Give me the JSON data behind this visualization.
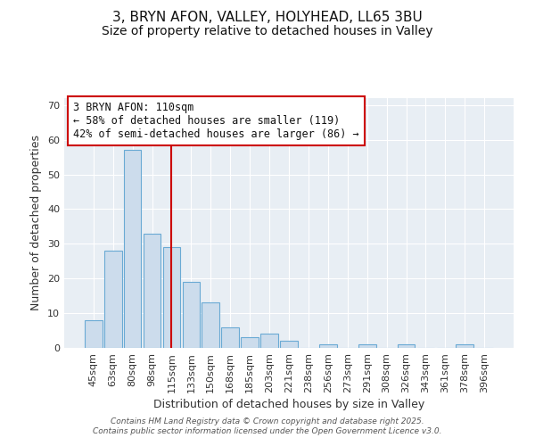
{
  "title1": "3, BRYN AFON, VALLEY, HOLYHEAD, LL65 3BU",
  "title2": "Size of property relative to detached houses in Valley",
  "xlabel": "Distribution of detached houses by size in Valley",
  "ylabel": "Number of detached properties",
  "categories": [
    "45sqm",
    "63sqm",
    "80sqm",
    "98sqm",
    "115sqm",
    "133sqm",
    "150sqm",
    "168sqm",
    "185sqm",
    "203sqm",
    "221sqm",
    "238sqm",
    "256sqm",
    "273sqm",
    "291sqm",
    "308sqm",
    "326sqm",
    "343sqm",
    "361sqm",
    "378sqm",
    "396sqm"
  ],
  "values": [
    8,
    28,
    57,
    33,
    29,
    19,
    13,
    6,
    3,
    4,
    2,
    0,
    1,
    0,
    1,
    0,
    1,
    0,
    0,
    1,
    0
  ],
  "bar_color": "#ccdcec",
  "bar_edgecolor": "#6aaad4",
  "bar_linewidth": 0.8,
  "vline_x_index": 4,
  "vline_color": "#cc0000",
  "annotation_text": "3 BRYN AFON: 110sqm\n← 58% of detached houses are smaller (119)\n42% of semi-detached houses are larger (86) →",
  "annotation_box_edgecolor": "#cc0000",
  "annotation_fontsize": 8.5,
  "ylim": [
    0,
    72
  ],
  "yticks": [
    0,
    10,
    20,
    30,
    40,
    50,
    60,
    70
  ],
  "grid_color": "#ffffff",
  "background_color": "#e8eef4",
  "footer": "Contains HM Land Registry data © Crown copyright and database right 2025.\nContains public sector information licensed under the Open Government Licence v3.0.",
  "title_fontsize": 11,
  "subtitle_fontsize": 10,
  "xlabel_fontsize": 9,
  "ylabel_fontsize": 9,
  "tick_fontsize": 8
}
